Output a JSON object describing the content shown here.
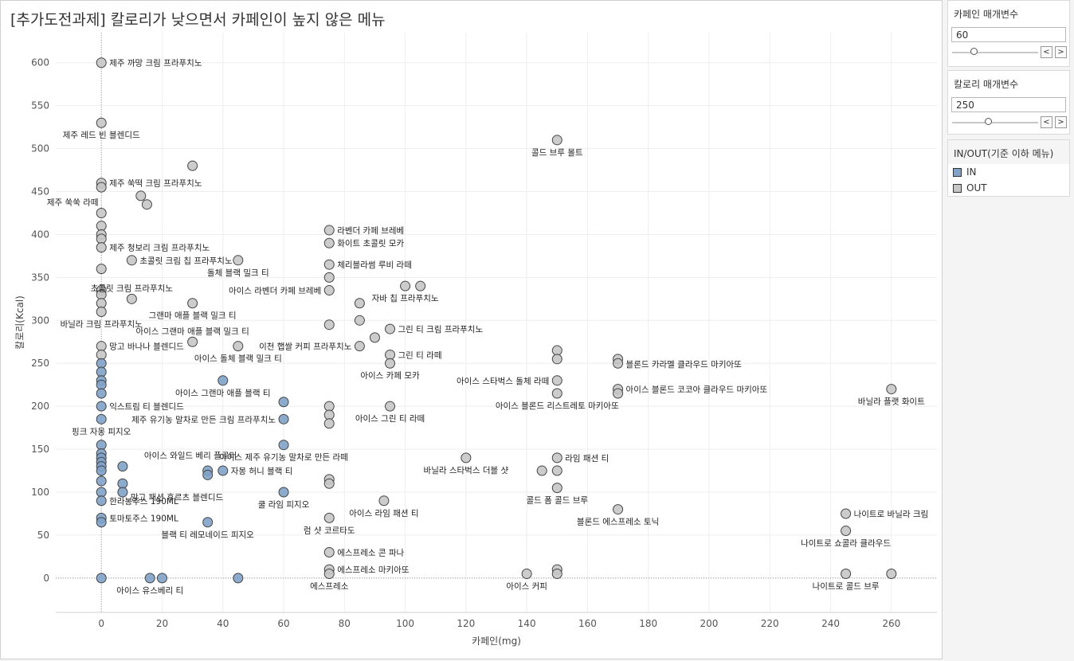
{
  "chart_panel": {
    "title": "[추가도전과제] 칼로리가 낮으면서 카페인이 높지 않은 메뉴"
  },
  "parameters": [
    {
      "title": "카페인 매개변수",
      "value": "60",
      "slider_fraction": 0.25,
      "prev_label": "<",
      "next_label": ">"
    },
    {
      "title": "칼로리 매개변수",
      "value": "250",
      "slider_fraction": 0.42,
      "prev_label": "<",
      "next_label": ">"
    }
  ],
  "legend": {
    "title": "IN/OUT(기준 이하 메뉴)",
    "items": [
      {
        "label": "IN",
        "color": "#7fa2c8"
      },
      {
        "label": "OUT",
        "color": "#c6c6c6"
      }
    ]
  },
  "chart_data": {
    "type": "scatter",
    "title": "[추가도전과제] 칼로리가 낮으면서 카페인이 높지 않은 메뉴",
    "xlabel": "카페인(mg)",
    "ylabel": "칼로리(Kcal)",
    "xlim": [
      -15,
      275
    ],
    "ylim": [
      -40,
      635
    ],
    "xticks": [
      0,
      20,
      40,
      60,
      80,
      100,
      120,
      140,
      160,
      180,
      200,
      220,
      240,
      260
    ],
    "yticks": [
      0,
      50,
      100,
      150,
      200,
      250,
      300,
      350,
      400,
      450,
      500,
      550,
      600
    ],
    "grid": true,
    "reference_lines": {
      "x": 0,
      "y": 0
    },
    "colors": {
      "IN": "#7fa2c8",
      "OUT": "#c6c6c6"
    },
    "points": [
      {
        "x": 0,
        "y": 600,
        "group": "OUT",
        "label": "제주 까망 크림 프라푸치노",
        "label_pos": "right"
      },
      {
        "x": 0,
        "y": 530,
        "group": "OUT",
        "label": "제주 레드 빈 블렌디드",
        "label_pos": "below"
      },
      {
        "x": 0,
        "y": 460,
        "group": "OUT",
        "label": "제주 쑥떡 크림 프라푸치노",
        "label_pos": "right"
      },
      {
        "x": 0,
        "y": 455,
        "group": "OUT",
        "label": "",
        "label_pos": "none"
      },
      {
        "x": 0,
        "y": 425,
        "group": "OUT",
        "label": "제주 쑥쑥 라떼",
        "label_pos": "above-left"
      },
      {
        "x": 0,
        "y": 410,
        "group": "OUT",
        "label": "",
        "label_pos": "none"
      },
      {
        "x": 0,
        "y": 400,
        "group": "OUT",
        "label": "",
        "label_pos": "none"
      },
      {
        "x": 0,
        "y": 395,
        "group": "OUT",
        "label": "",
        "label_pos": "none"
      },
      {
        "x": 0,
        "y": 385,
        "group": "OUT",
        "label": "제주 청보리 크림 프라푸치노",
        "label_pos": "right"
      },
      {
        "x": 0,
        "y": 360,
        "group": "OUT",
        "label": "",
        "label_pos": "none"
      },
      {
        "x": 0,
        "y": 335,
        "group": "OUT",
        "label": "",
        "label_pos": "none"
      },
      {
        "x": 0,
        "y": 330,
        "group": "OUT",
        "label": "",
        "label_pos": "none"
      },
      {
        "x": 0,
        "y": 320,
        "group": "OUT",
        "label": "",
        "label_pos": "none"
      },
      {
        "x": 0,
        "y": 310,
        "group": "OUT",
        "label": "바닐라 크림 프라푸치노",
        "label_pos": "below"
      },
      {
        "x": 0,
        "y": 270,
        "group": "OUT",
        "label": "망고 바나나 블렌디드",
        "label_pos": "right"
      },
      {
        "x": 0,
        "y": 260,
        "group": "OUT",
        "label": "",
        "label_pos": "none"
      },
      {
        "x": 0,
        "y": 250,
        "group": "IN",
        "label": "",
        "label_pos": "none"
      },
      {
        "x": 0,
        "y": 240,
        "group": "IN",
        "label": "",
        "label_pos": "none"
      },
      {
        "x": 0,
        "y": 230,
        "group": "IN",
        "label": "",
        "label_pos": "none"
      },
      {
        "x": 0,
        "y": 225,
        "group": "IN",
        "label": "",
        "label_pos": "none"
      },
      {
        "x": 0,
        "y": 215,
        "group": "IN",
        "label": "",
        "label_pos": "none"
      },
      {
        "x": 0,
        "y": 200,
        "group": "IN",
        "label": "익스트림 티 블렌디드",
        "label_pos": "right"
      },
      {
        "x": 0,
        "y": 185,
        "group": "IN",
        "label": "핑크 자몽 피지오",
        "label_pos": "below"
      },
      {
        "x": 0,
        "y": 155,
        "group": "IN",
        "label": "",
        "label_pos": "none"
      },
      {
        "x": 0,
        "y": 145,
        "group": "IN",
        "label": "",
        "label_pos": "none"
      },
      {
        "x": 0,
        "y": 140,
        "group": "IN",
        "label": "",
        "label_pos": "none"
      },
      {
        "x": 0,
        "y": 135,
        "group": "IN",
        "label": "",
        "label_pos": "none"
      },
      {
        "x": 0,
        "y": 130,
        "group": "IN",
        "label": "",
        "label_pos": "none"
      },
      {
        "x": 0,
        "y": 125,
        "group": "IN",
        "label": "",
        "label_pos": "none"
      },
      {
        "x": 0,
        "y": 113,
        "group": "IN",
        "label": "",
        "label_pos": "none"
      },
      {
        "x": 0,
        "y": 100,
        "group": "IN",
        "label": "",
        "label_pos": "none"
      },
      {
        "x": 0,
        "y": 90,
        "group": "IN",
        "label": "한라봉주스 190ML",
        "label_pos": "right"
      },
      {
        "x": 0,
        "y": 70,
        "group": "IN",
        "label": "토마토주스 190ML",
        "label_pos": "right"
      },
      {
        "x": 0,
        "y": 65,
        "group": "IN",
        "label": "",
        "label_pos": "none"
      },
      {
        "x": 0,
        "y": 0,
        "group": "IN",
        "label": "",
        "label_pos": "none"
      },
      {
        "x": 10,
        "y": 370,
        "group": "OUT",
        "label": "초콜릿 크림 칩 프라푸치노",
        "label_pos": "right"
      },
      {
        "x": 10,
        "y": 325,
        "group": "OUT",
        "label": "초콜릿 크림 프라푸치노",
        "label_pos": "above"
      },
      {
        "x": 13,
        "y": 445,
        "group": "OUT",
        "label": "",
        "label_pos": "none"
      },
      {
        "x": 15,
        "y": 435,
        "group": "OUT",
        "label": "",
        "label_pos": "none"
      },
      {
        "x": 30,
        "y": 480,
        "group": "OUT",
        "label": "",
        "label_pos": "none"
      },
      {
        "x": 30,
        "y": 320,
        "group": "OUT",
        "label": "그랜마 애플 블랙 밀크 티",
        "label_pos": "below"
      },
      {
        "x": 30,
        "y": 275,
        "group": "OUT",
        "label": "아이스 그랜마 애플 블랙 밀크 티",
        "label_pos": "above"
      },
      {
        "x": 45,
        "y": 370,
        "group": "OUT",
        "label": "돌체 블랙 밀크 티",
        "label_pos": "below"
      },
      {
        "x": 45,
        "y": 270,
        "group": "OUT",
        "label": "아이스 돌체 블랙 밀크 티",
        "label_pos": "below"
      },
      {
        "x": 40,
        "y": 230,
        "group": "IN",
        "label": "아이스 그랜마 애플 블랙 티",
        "label_pos": "below"
      },
      {
        "x": 7,
        "y": 130,
        "group": "IN",
        "label": "아이스 와일드 베리 플로터",
        "label_pos": "above-right"
      },
      {
        "x": 7,
        "y": 110,
        "group": "IN",
        "label": "",
        "label_pos": "none"
      },
      {
        "x": 7,
        "y": 100,
        "group": "IN",
        "label": "망고 패션 후르츠 블렌디드",
        "label_pos": "right-below"
      },
      {
        "x": 35,
        "y": 125,
        "group": "IN",
        "label": "",
        "label_pos": "none"
      },
      {
        "x": 35,
        "y": 120,
        "group": "IN",
        "label": "",
        "label_pos": "none"
      },
      {
        "x": 40,
        "y": 125,
        "group": "IN",
        "label": "자몽 허니 블랙 티",
        "label_pos": "right"
      },
      {
        "x": 35,
        "y": 65,
        "group": "IN",
        "label": "블랙 티 레모네이드 피지오",
        "label_pos": "below"
      },
      {
        "x": 16,
        "y": 0,
        "group": "IN",
        "label": "아이스 유스베리 티",
        "label_pos": "below"
      },
      {
        "x": 20,
        "y": 0,
        "group": "IN",
        "label": "",
        "label_pos": "none"
      },
      {
        "x": 45,
        "y": 0,
        "group": "IN",
        "label": "",
        "label_pos": "none"
      },
      {
        "x": 60,
        "y": 205,
        "group": "IN",
        "label": "",
        "label_pos": "none"
      },
      {
        "x": 60,
        "y": 185,
        "group": "IN",
        "label": "제주 유기농 말차로 만든 크림 프라푸치노",
        "label_pos": "left"
      },
      {
        "x": 60,
        "y": 155,
        "group": "IN",
        "label": "아이스 제주 유기농 말차로 만든 라떼",
        "label_pos": "below"
      },
      {
        "x": 60,
        "y": 100,
        "group": "IN",
        "label": "쿨 라임 피지오",
        "label_pos": "below"
      },
      {
        "x": 75,
        "y": 405,
        "group": "OUT",
        "label": "라벤더 카페 브레베",
        "label_pos": "right"
      },
      {
        "x": 75,
        "y": 390,
        "group": "OUT",
        "label": "화이트 초콜릿 모카",
        "label_pos": "right"
      },
      {
        "x": 75,
        "y": 365,
        "group": "OUT",
        "label": "체리블라썸 루비 라떼",
        "label_pos": "right"
      },
      {
        "x": 75,
        "y": 350,
        "group": "OUT",
        "label": "",
        "label_pos": "none"
      },
      {
        "x": 75,
        "y": 335,
        "group": "OUT",
        "label": "아이스 라벤더 카페 브레베",
        "label_pos": "left"
      },
      {
        "x": 75,
        "y": 295,
        "group": "OUT",
        "label": "",
        "label_pos": "none"
      },
      {
        "x": 75,
        "y": 200,
        "group": "OUT",
        "label": "",
        "label_pos": "none"
      },
      {
        "x": 75,
        "y": 190,
        "group": "OUT",
        "label": "",
        "label_pos": "none"
      },
      {
        "x": 75,
        "y": 180,
        "group": "OUT",
        "label": "",
        "label_pos": "none"
      },
      {
        "x": 75,
        "y": 115,
        "group": "OUT",
        "label": "",
        "label_pos": "none"
      },
      {
        "x": 75,
        "y": 110,
        "group": "OUT",
        "label": "",
        "label_pos": "none"
      },
      {
        "x": 75,
        "y": 70,
        "group": "OUT",
        "label": "럼 샷 코르타도",
        "label_pos": "below"
      },
      {
        "x": 75,
        "y": 30,
        "group": "OUT",
        "label": "에스프레소 콘 파나",
        "label_pos": "right"
      },
      {
        "x": 75,
        "y": 10,
        "group": "OUT",
        "label": "에스프레소 마키아또",
        "label_pos": "right"
      },
      {
        "x": 75,
        "y": 5,
        "group": "OUT",
        "label": "에스프레소",
        "label_pos": "below"
      },
      {
        "x": 85,
        "y": 320,
        "group": "OUT",
        "label": "",
        "label_pos": "none"
      },
      {
        "x": 85,
        "y": 300,
        "group": "OUT",
        "label": "",
        "label_pos": "none"
      },
      {
        "x": 85,
        "y": 270,
        "group": "OUT",
        "label": "이천 햅쌀 커피 프라푸치노",
        "label_pos": "left"
      },
      {
        "x": 90,
        "y": 280,
        "group": "OUT",
        "label": "",
        "label_pos": "none"
      },
      {
        "x": 93,
        "y": 90,
        "group": "OUT",
        "label": "아이스 라임 패션 티",
        "label_pos": "below"
      },
      {
        "x": 95,
        "y": 290,
        "group": "OUT",
        "label": "그린 티 크림 프라푸치노",
        "label_pos": "right"
      },
      {
        "x": 95,
        "y": 260,
        "group": "OUT",
        "label": "그린 티 라떼",
        "label_pos": "right"
      },
      {
        "x": 95,
        "y": 250,
        "group": "OUT",
        "label": "아이스 카페 모카",
        "label_pos": "below"
      },
      {
        "x": 95,
        "y": 200,
        "group": "OUT",
        "label": "아이스 그린 티 라떼",
        "label_pos": "below"
      },
      {
        "x": 100,
        "y": 340,
        "group": "OUT",
        "label": "자바 칩 프라푸치노",
        "label_pos": "below"
      },
      {
        "x": 105,
        "y": 340,
        "group": "OUT",
        "label": "",
        "label_pos": "none"
      },
      {
        "x": 120,
        "y": 140,
        "group": "OUT",
        "label": "바닐라 스타벅스 더블 샷",
        "label_pos": "below"
      },
      {
        "x": 140,
        "y": 5,
        "group": "OUT",
        "label": "아이스 커피",
        "label_pos": "below"
      },
      {
        "x": 145,
        "y": 125,
        "group": "OUT",
        "label": "",
        "label_pos": "none"
      },
      {
        "x": 150,
        "y": 510,
        "group": "OUT",
        "label": "콜드 브루 몰트",
        "label_pos": "below"
      },
      {
        "x": 150,
        "y": 265,
        "group": "OUT",
        "label": "",
        "label_pos": "none"
      },
      {
        "x": 150,
        "y": 255,
        "group": "OUT",
        "label": "",
        "label_pos": "none"
      },
      {
        "x": 150,
        "y": 230,
        "group": "OUT",
        "label": "아이스 스타벅스 돌체 라떼",
        "label_pos": "left"
      },
      {
        "x": 150,
        "y": 215,
        "group": "OUT",
        "label": "아이스 블론드 리스트레토 마키아또",
        "label_pos": "below"
      },
      {
        "x": 150,
        "y": 140,
        "group": "OUT",
        "label": "라임 패션 티",
        "label_pos": "right"
      },
      {
        "x": 150,
        "y": 125,
        "group": "OUT",
        "label": "",
        "label_pos": "none"
      },
      {
        "x": 150,
        "y": 105,
        "group": "OUT",
        "label": "콜드 폼 콜드 브루",
        "label_pos": "below"
      },
      {
        "x": 150,
        "y": 10,
        "group": "OUT",
        "label": "",
        "label_pos": "none"
      },
      {
        "x": 150,
        "y": 5,
        "group": "OUT",
        "label": "",
        "label_pos": "none"
      },
      {
        "x": 170,
        "y": 255,
        "group": "OUT",
        "label": "블론드 카라멜 클라우드 마키아또",
        "label_pos": "right-below"
      },
      {
        "x": 170,
        "y": 250,
        "group": "OUT",
        "label": "",
        "label_pos": "none"
      },
      {
        "x": 170,
        "y": 220,
        "group": "OUT",
        "label": "아이스 블론드 코코아 클라우드 마키아또",
        "label_pos": "right"
      },
      {
        "x": 170,
        "y": 215,
        "group": "OUT",
        "label": "",
        "label_pos": "none"
      },
      {
        "x": 170,
        "y": 80,
        "group": "OUT",
        "label": "블론드 에스프레소 토닉",
        "label_pos": "below"
      },
      {
        "x": 245,
        "y": 75,
        "group": "OUT",
        "label": "나이트로 바닐라 크림",
        "label_pos": "right"
      },
      {
        "x": 245,
        "y": 55,
        "group": "OUT",
        "label": "나이트로 쇼콜라 클라우드",
        "label_pos": "below"
      },
      {
        "x": 245,
        "y": 5,
        "group": "OUT",
        "label": "나이트로 콜드 브루",
        "label_pos": "below"
      },
      {
        "x": 260,
        "y": 220,
        "group": "OUT",
        "label": "바닐라 플랫 화이트",
        "label_pos": "below"
      },
      {
        "x": 260,
        "y": 5,
        "group": "OUT",
        "label": "",
        "label_pos": "none"
      }
    ]
  }
}
